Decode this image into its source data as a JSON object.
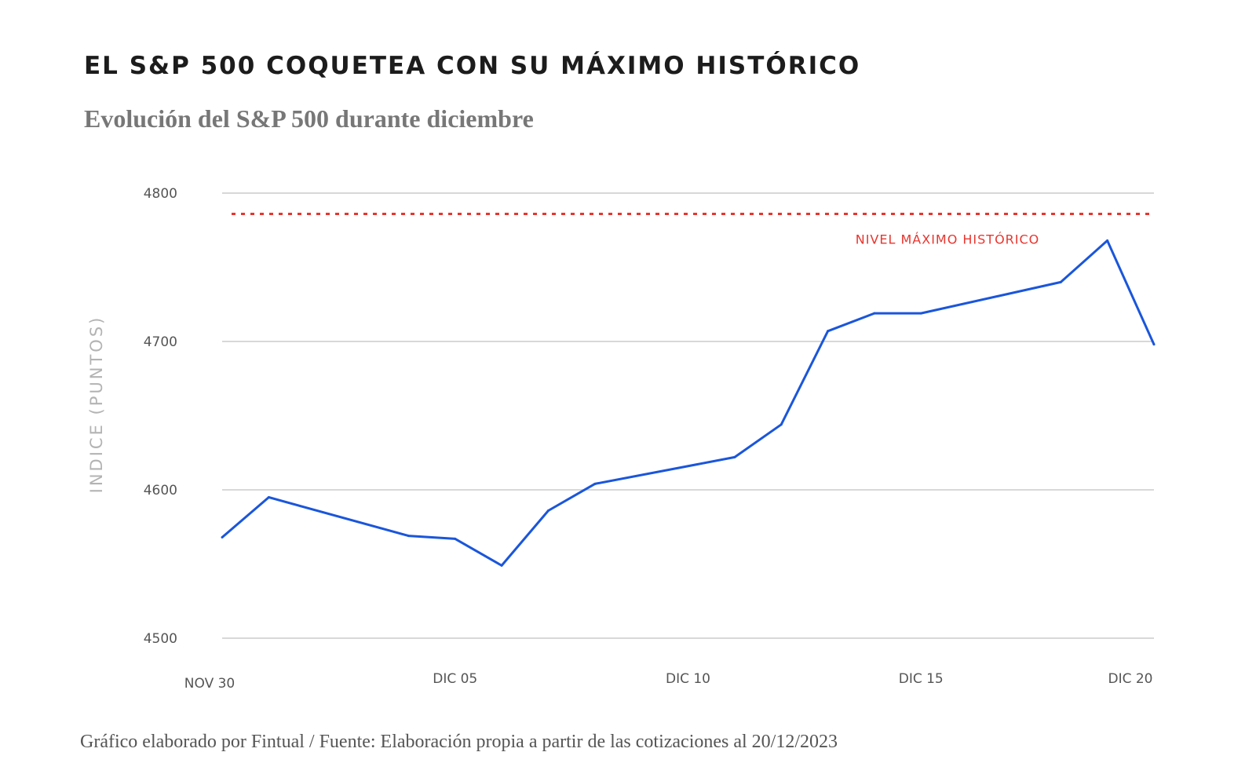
{
  "title": "EL S&P 500 COQUETEA CON SU MÁXIMO HISTÓRICO",
  "subtitle": "Evolución del S&P 500 durante diciembre",
  "footer": "Gráfico elaborado por Fintual / Fuente: Elaboración propia a partir de las cotizaciones al 20/12/2023",
  "colors": {
    "line": "#1a56db",
    "reference": "#e8352e",
    "grid": "#cccccc"
  },
  "chart_data": {
    "type": "line",
    "title": "EL S&P 500 COQUETEA CON SU MÁXIMO HISTÓRICO",
    "subtitle": "Evolución del S&P 500 durante diciembre",
    "xlabel": "",
    "ylabel": "INDICE (PUNTOS)",
    "ylim": [
      4500,
      4800
    ],
    "yticks": [
      4500,
      4600,
      4700,
      4800
    ],
    "xlim": [
      "2023-11-30",
      "2023-12-20"
    ],
    "xticks": [
      {
        "date": "2023-11-30",
        "label": "NOV 30"
      },
      {
        "date": "2023-12-05",
        "label": "DIC 05"
      },
      {
        "date": "2023-12-10",
        "label": "DIC 10"
      },
      {
        "date": "2023-12-15",
        "label": "DIC 15"
      },
      {
        "date": "2023-12-20",
        "label": "DIC 20"
      }
    ],
    "grid": true,
    "series": [
      {
        "x": [
          "2023-11-30",
          "2023-12-01",
          "2023-12-04",
          "2023-12-05",
          "2023-12-06",
          "2023-12-07",
          "2023-12-08",
          "2023-12-11",
          "2023-12-12",
          "2023-12-13",
          "2023-12-14",
          "2023-12-15",
          "2023-12-18",
          "2023-12-19",
          "2023-12-20"
        ],
        "values": [
          4568,
          4595,
          4569,
          4567,
          4549,
          4586,
          4604,
          4622,
          4644,
          4707,
          4719,
          4719,
          4740,
          4768,
          4698
        ]
      }
    ],
    "reference_line": {
      "value": 4786,
      "label": "NIVEL MÁXIMO HISTÓRICO"
    }
  }
}
